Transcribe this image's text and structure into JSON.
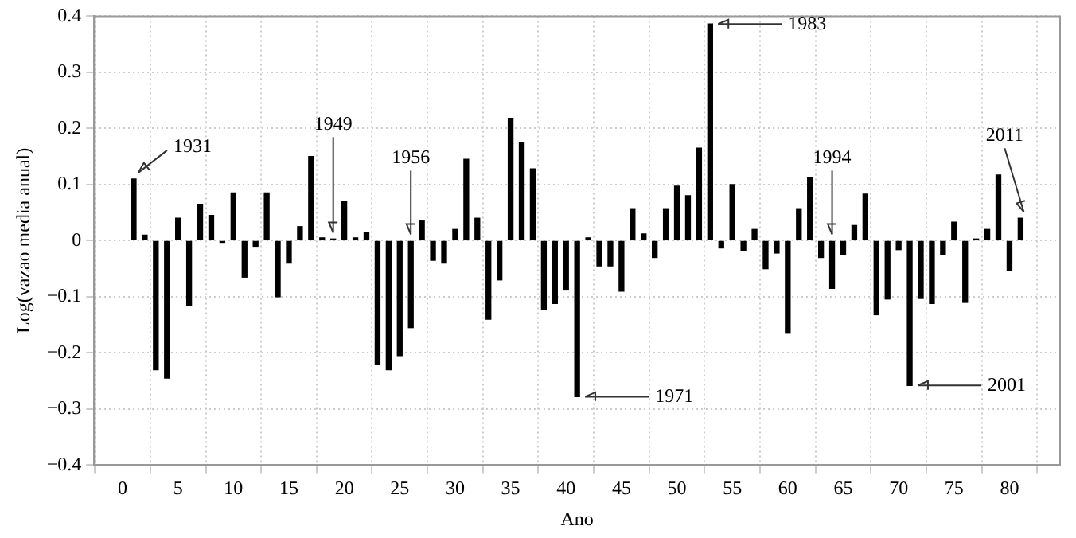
{
  "chart_data": {
    "type": "bar",
    "xlabel": "Ano",
    "ylabel": "Log(vazao media anual)",
    "x": [
      1,
      2,
      3,
      4,
      5,
      6,
      7,
      8,
      9,
      10,
      11,
      12,
      13,
      14,
      15,
      16,
      17,
      18,
      19,
      20,
      21,
      22,
      23,
      24,
      25,
      26,
      27,
      28,
      29,
      30,
      31,
      32,
      33,
      34,
      35,
      36,
      37,
      38,
      39,
      40,
      41,
      42,
      43,
      44,
      45,
      46,
      47,
      48,
      49,
      50,
      51,
      52,
      53,
      54,
      55,
      56,
      57,
      58,
      59,
      60,
      61,
      62,
      63,
      64,
      65,
      66,
      67,
      68,
      69,
      70,
      71,
      72,
      73,
      74,
      75,
      76,
      77,
      78,
      79,
      80,
      81
    ],
    "values": [
      0.11,
      0.01,
      -0.23,
      -0.245,
      0.04,
      -0.115,
      0.065,
      0.045,
      -0.003,
      0.085,
      -0.065,
      -0.01,
      0.085,
      -0.1,
      -0.04,
      0.025,
      0.15,
      0.005,
      0.003,
      0.07,
      0.005,
      0.015,
      -0.22,
      -0.23,
      -0.205,
      -0.155,
      0.035,
      -0.035,
      -0.04,
      0.02,
      0.145,
      0.04,
      -0.14,
      -0.07,
      0.218,
      0.175,
      0.128,
      -0.123,
      -0.112,
      -0.088,
      -0.278,
      0.005,
      -0.045,
      -0.045,
      -0.09,
      0.057,
      0.012,
      -0.03,
      0.057,
      0.097,
      0.08,
      0.165,
      0.386,
      -0.013,
      0.1,
      -0.017,
      0.02,
      -0.05,
      -0.022,
      -0.165,
      0.057,
      0.113,
      -0.03,
      -0.085,
      -0.025,
      0.027,
      0.083,
      -0.132,
      -0.104,
      -0.016,
      -0.258,
      -0.103,
      -0.112,
      -0.025,
      0.033,
      -0.11,
      0.003,
      0.02,
      0.117,
      -0.053,
      0.04
    ],
    "color": "#000000",
    "xlim": [
      0,
      82
    ],
    "xticks": [
      0,
      5,
      10,
      15,
      20,
      25,
      30,
      35,
      40,
      45,
      50,
      55,
      60,
      65,
      70,
      75,
      80
    ],
    "ylim": [
      -0.4,
      0.4
    ],
    "yticks": [
      -0.4,
      -0.3,
      -0.2,
      -0.1,
      0,
      0.1,
      0.2,
      0.3,
      0.4
    ],
    "grid": true,
    "legend": false,
    "annotations": [
      {
        "text": "1931",
        "x": 1,
        "y": 0.11
      },
      {
        "text": "1949",
        "x": 19,
        "y": 0.003
      },
      {
        "text": "1956",
        "x": 26,
        "y": 0
      },
      {
        "text": "1971",
        "x": 41,
        "y": -0.278
      },
      {
        "text": "1983",
        "x": 53,
        "y": 0.386
      },
      {
        "text": "1994",
        "x": 64,
        "y": 0
      },
      {
        "text": "2001",
        "x": 71,
        "y": -0.258
      },
      {
        "text": "2011",
        "x": 81,
        "y": 0.04
      }
    ]
  }
}
